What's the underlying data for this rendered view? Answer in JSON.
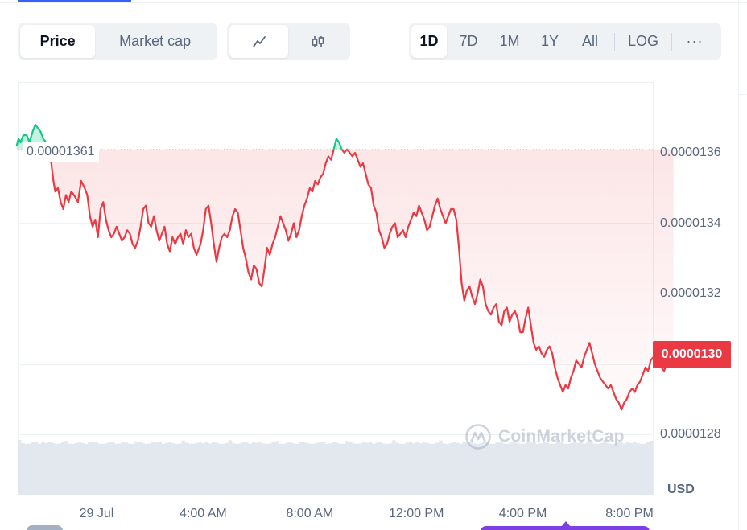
{
  "toolbar": {
    "metric_tabs": [
      {
        "label": "Price",
        "active": true
      },
      {
        "label": "Market cap",
        "active": false
      }
    ],
    "chart_type_icons": [
      "line-chart-icon",
      "candlestick-icon"
    ],
    "active_chart_type": "line-chart-icon",
    "ranges": [
      {
        "label": "1D",
        "active": true
      },
      {
        "label": "7D",
        "active": false
      },
      {
        "label": "1M",
        "active": false
      },
      {
        "label": "1Y",
        "active": false
      },
      {
        "label": "All",
        "active": false
      }
    ],
    "log_label": "LOG",
    "more_label": "···"
  },
  "chart": {
    "open_price_label": "0.00001361",
    "current_price_label": "0.0000130",
    "currency_label": "USD",
    "watermark": "CoinMarketCap",
    "colors": {
      "up": "#16c784",
      "down": "#ea3943",
      "grid": "#eff2f5",
      "volume": "#e3e8ee"
    }
  },
  "chart_data": {
    "type": "area",
    "baseline": 1.361e-05,
    "ylim": [
      1.27e-05,
      1.376e-05
    ],
    "yticks": [
      1.28e-05,
      1.3e-05,
      1.32e-05,
      1.34e-05,
      1.36e-05
    ],
    "ytick_labels": [
      "0.0000128",
      "0.0000130",
      "0.0000132",
      "0.0000134",
      "0.0000136"
    ],
    "x_tick_labels": [
      "29 Jul",
      "4:00 AM",
      "8:00 AM",
      "12:00 PM",
      "4:00 PM",
      "8:00 PM"
    ],
    "x_tick_hours": [
      0,
      4,
      8,
      12,
      16,
      20
    ],
    "x_range_hours": [
      -3.0,
      21.65
    ],
    "series": [
      {
        "values": [
          [
            -3.0,
            1.362e-05
          ],
          [
            -2.93,
            1.364e-05
          ],
          [
            -2.85,
            1.363e-05
          ],
          [
            -2.75,
            1.365e-05
          ],
          [
            -2.62,
            1.365e-05
          ],
          [
            -2.52,
            1.363e-05
          ],
          [
            -2.4,
            1.366e-05
          ],
          [
            -2.3,
            1.368e-05
          ],
          [
            -2.2,
            1.367e-05
          ],
          [
            -2.1,
            1.366e-05
          ],
          [
            -2.0,
            1.364e-05
          ],
          [
            -1.9,
            1.363e-05
          ],
          [
            -1.8,
            1.362e-05
          ],
          [
            -1.7,
            1.357e-05
          ],
          [
            -1.62,
            1.352e-05
          ],
          [
            -1.55,
            1.349e-05
          ],
          [
            -1.45,
            1.35e-05
          ],
          [
            -1.35,
            1.346e-05
          ],
          [
            -1.25,
            1.344e-05
          ],
          [
            -1.15,
            1.348e-05
          ],
          [
            -1.05,
            1.346e-05
          ],
          [
            -0.95,
            1.349e-05
          ],
          [
            -0.85,
            1.348e-05
          ],
          [
            -0.7,
            1.346e-05
          ],
          [
            -0.58,
            1.352e-05
          ],
          [
            -0.45,
            1.35e-05
          ],
          [
            -0.35,
            1.348e-05
          ],
          [
            -0.25,
            1.342e-05
          ],
          [
            -0.15,
            1.339e-05
          ],
          [
            -0.05,
            1.341e-05
          ],
          [
            0.05,
            1.336e-05
          ],
          [
            0.15,
            1.344e-05
          ],
          [
            0.25,
            1.346e-05
          ],
          [
            0.35,
            1.341e-05
          ],
          [
            0.45,
            1.338e-05
          ],
          [
            0.55,
            1.336e-05
          ],
          [
            0.65,
            1.337e-05
          ],
          [
            0.75,
            1.339e-05
          ],
          [
            0.85,
            1.337e-05
          ],
          [
            0.95,
            1.335e-05
          ],
          [
            1.05,
            1.336e-05
          ],
          [
            1.15,
            1.338e-05
          ],
          [
            1.25,
            1.337e-05
          ],
          [
            1.35,
            1.334e-05
          ],
          [
            1.45,
            1.333e-05
          ],
          [
            1.55,
            1.335e-05
          ],
          [
            1.65,
            1.339e-05
          ],
          [
            1.75,
            1.344e-05
          ],
          [
            1.85,
            1.345e-05
          ],
          [
            1.95,
            1.34e-05
          ],
          [
            2.05,
            1.339e-05
          ],
          [
            2.15,
            1.342e-05
          ],
          [
            2.25,
            1.338e-05
          ],
          [
            2.35,
            1.335e-05
          ],
          [
            2.45,
            1.337e-05
          ],
          [
            2.55,
            1.339e-05
          ],
          [
            2.65,
            1.334e-05
          ],
          [
            2.75,
            1.332e-05
          ],
          [
            2.85,
            1.336e-05
          ],
          [
            2.95,
            1.334e-05
          ],
          [
            3.05,
            1.336e-05
          ],
          [
            3.15,
            1.337e-05
          ],
          [
            3.25,
            1.334e-05
          ],
          [
            3.35,
            1.338e-05
          ],
          [
            3.45,
            1.336e-05
          ],
          [
            3.55,
            1.337e-05
          ],
          [
            3.65,
            1.333e-05
          ],
          [
            3.75,
            1.331e-05
          ],
          [
            3.9,
            1.334e-05
          ],
          [
            4.0,
            1.338e-05
          ],
          [
            4.1,
            1.344e-05
          ],
          [
            4.2,
            1.345e-05
          ],
          [
            4.3,
            1.34e-05
          ],
          [
            4.4,
            1.334e-05
          ],
          [
            4.5,
            1.329e-05
          ],
          [
            4.6,
            1.333e-05
          ],
          [
            4.7,
            1.336e-05
          ],
          [
            4.8,
            1.337e-05
          ],
          [
            4.9,
            1.336e-05
          ],
          [
            5.0,
            1.338e-05
          ],
          [
            5.1,
            1.342e-05
          ],
          [
            5.2,
            1.344e-05
          ],
          [
            5.3,
            1.343e-05
          ],
          [
            5.4,
            1.338e-05
          ],
          [
            5.5,
            1.333e-05
          ],
          [
            5.6,
            1.33e-05
          ],
          [
            5.7,
            1.326e-05
          ],
          [
            5.8,
            1.324e-05
          ],
          [
            5.9,
            1.328e-05
          ],
          [
            6.0,
            1.327e-05
          ],
          [
            6.1,
            1.323e-05
          ],
          [
            6.2,
            1.322e-05
          ],
          [
            6.3,
            1.327e-05
          ],
          [
            6.4,
            1.333e-05
          ],
          [
            6.5,
            1.331e-05
          ],
          [
            6.6,
            1.334e-05
          ],
          [
            6.7,
            1.336e-05
          ],
          [
            6.8,
            1.339e-05
          ],
          [
            6.9,
            1.342e-05
          ],
          [
            7.0,
            1.34e-05
          ],
          [
            7.1,
            1.338e-05
          ],
          [
            7.2,
            1.335e-05
          ],
          [
            7.3,
            1.337e-05
          ],
          [
            7.4,
            1.34e-05
          ],
          [
            7.5,
            1.336e-05
          ],
          [
            7.6,
            1.338e-05
          ],
          [
            7.7,
            1.342e-05
          ],
          [
            7.8,
            1.345e-05
          ],
          [
            7.9,
            1.347e-05
          ],
          [
            8.0,
            1.35e-05
          ],
          [
            8.1,
            1.349e-05
          ],
          [
            8.2,
            1.352e-05
          ],
          [
            8.3,
            1.351e-05
          ],
          [
            8.4,
            1.353e-05
          ],
          [
            8.5,
            1.354e-05
          ],
          [
            8.6,
            1.357e-05
          ],
          [
            8.7,
            1.359e-05
          ],
          [
            8.8,
            1.358e-05
          ],
          [
            8.9,
            1.361e-05
          ],
          [
            9.0,
            1.364e-05
          ],
          [
            9.1,
            1.363e-05
          ],
          [
            9.2,
            1.361e-05
          ],
          [
            9.3,
            1.36e-05
          ],
          [
            9.4,
            1.361e-05
          ],
          [
            9.5,
            1.36e-05
          ],
          [
            9.6,
            1.359e-05
          ],
          [
            9.7,
            1.36e-05
          ],
          [
            9.8,
            1.358e-05
          ],
          [
            9.9,
            1.356e-05
          ],
          [
            10.0,
            1.357e-05
          ],
          [
            10.1,
            1.354e-05
          ],
          [
            10.2,
            1.351e-05
          ],
          [
            10.3,
            1.35e-05
          ],
          [
            10.4,
            1.345e-05
          ],
          [
            10.5,
            1.343e-05
          ],
          [
            10.6,
            1.338e-05
          ],
          [
            10.7,
            1.336e-05
          ],
          [
            10.8,
            1.333e-05
          ],
          [
            10.9,
            1.334e-05
          ],
          [
            11.0,
            1.337e-05
          ],
          [
            11.1,
            1.339e-05
          ],
          [
            11.2,
            1.34e-05
          ],
          [
            11.3,
            1.336e-05
          ],
          [
            11.4,
            1.337e-05
          ],
          [
            11.5,
            1.338e-05
          ],
          [
            11.6,
            1.336e-05
          ],
          [
            11.7,
            1.339e-05
          ],
          [
            11.8,
            1.341e-05
          ],
          [
            11.9,
            1.343e-05
          ],
          [
            12.0,
            1.342e-05
          ],
          [
            12.1,
            1.345e-05
          ],
          [
            12.2,
            1.343e-05
          ],
          [
            12.3,
            1.341e-05
          ],
          [
            12.4,
            1.338e-05
          ],
          [
            12.5,
            1.339e-05
          ],
          [
            12.6,
            1.342e-05
          ],
          [
            12.7,
            1.345e-05
          ],
          [
            12.8,
            1.347e-05
          ],
          [
            12.9,
            1.344e-05
          ],
          [
            13.0,
            1.342e-05
          ],
          [
            13.1,
            1.34e-05
          ],
          [
            13.2,
            1.342e-05
          ],
          [
            13.3,
            1.344e-05
          ],
          [
            13.4,
            1.344e-05
          ],
          [
            13.5,
            1.341e-05
          ],
          [
            13.6,
            1.333e-05
          ],
          [
            13.7,
            1.323e-05
          ],
          [
            13.8,
            1.318e-05
          ],
          [
            13.9,
            1.321e-05
          ],
          [
            14.0,
            1.322e-05
          ],
          [
            14.1,
            1.319e-05
          ],
          [
            14.2,
            1.317e-05
          ],
          [
            14.3,
            1.32e-05
          ],
          [
            14.4,
            1.324e-05
          ],
          [
            14.5,
            1.322e-05
          ],
          [
            14.6,
            1.317e-05
          ],
          [
            14.7,
            1.315e-05
          ],
          [
            14.8,
            1.314e-05
          ],
          [
            14.9,
            1.316e-05
          ],
          [
            15.0,
            1.317e-05
          ],
          [
            15.1,
            1.312e-05
          ],
          [
            15.2,
            1.311e-05
          ],
          [
            15.3,
            1.315e-05
          ],
          [
            15.4,
            1.316e-05
          ],
          [
            15.5,
            1.312e-05
          ],
          [
            15.6,
            1.314e-05
          ],
          [
            15.7,
            1.315e-05
          ],
          [
            15.8,
            1.313e-05
          ],
          [
            15.9,
            1.309e-05
          ],
          [
            16.0,
            1.309e-05
          ]
        ]
      },
      {
        "values": [
          [
            16.1,
            1.313e-05
          ],
          [
            16.2,
            1.316e-05
          ],
          [
            16.3,
            1.311e-05
          ],
          [
            16.4,
            1.306e-05
          ],
          [
            16.5,
            1.304e-05
          ],
          [
            16.6,
            1.305e-05
          ],
          [
            16.7,
            1.303e-05
          ],
          [
            16.8,
            1.302e-05
          ],
          [
            16.9,
            1.304e-05
          ],
          [
            17.0,
            1.305e-05
          ],
          [
            17.1,
            1.303e-05
          ],
          [
            17.2,
            1.299e-05
          ],
          [
            17.3,
            1.296e-05
          ],
          [
            17.4,
            1.294e-05
          ],
          [
            17.5,
            1.292e-05
          ],
          [
            17.6,
            1.294e-05
          ],
          [
            17.7,
            1.293e-05
          ],
          [
            17.8,
            1.296e-05
          ],
          [
            17.9,
            1.298e-05
          ],
          [
            18.0,
            1.301e-05
          ],
          [
            18.1,
            1.3e-05
          ],
          [
            18.2,
            1.299e-05
          ],
          [
            18.3,
            1.302e-05
          ],
          [
            18.4,
            1.304e-05
          ],
          [
            18.5,
            1.306e-05
          ],
          [
            18.6,
            1.303e-05
          ],
          [
            18.7,
            1.3e-05
          ],
          [
            18.8,
            1.298e-05
          ],
          [
            18.9,
            1.296e-05
          ],
          [
            19.0,
            1.295e-05
          ],
          [
            19.1,
            1.294e-05
          ],
          [
            19.2,
            1.293e-05
          ],
          [
            19.3,
            1.294e-05
          ],
          [
            19.4,
            1.292e-05
          ],
          [
            19.5,
            1.29e-05
          ],
          [
            19.6,
            1.289e-05
          ],
          [
            19.7,
            1.287e-05
          ],
          [
            19.8,
            1.289e-05
          ],
          [
            19.9,
            1.29e-05
          ],
          [
            20.0,
            1.292e-05
          ],
          [
            20.1,
            1.293e-05
          ],
          [
            20.2,
            1.292e-05
          ],
          [
            20.3,
            1.294e-05
          ],
          [
            20.4,
            1.295e-05
          ],
          [
            20.5,
            1.297e-05
          ],
          [
            20.6,
            1.299e-05
          ],
          [
            20.7,
            1.298e-05
          ],
          [
            20.8,
            1.301e-05
          ],
          [
            20.9,
            1.302e-05
          ],
          [
            21.0,
            1.3e-05
          ],
          [
            21.1,
            1.301e-05
          ],
          [
            21.2,
            1.299e-05
          ],
          [
            21.3,
            1.298e-05
          ],
          [
            21.4,
            1.3e-05
          ],
          [
            21.5,
            1.301e-05
          ],
          [
            21.65,
            1.3e-05
          ]
        ]
      }
    ],
    "current_value": 1.3e-05,
    "grid": true
  }
}
